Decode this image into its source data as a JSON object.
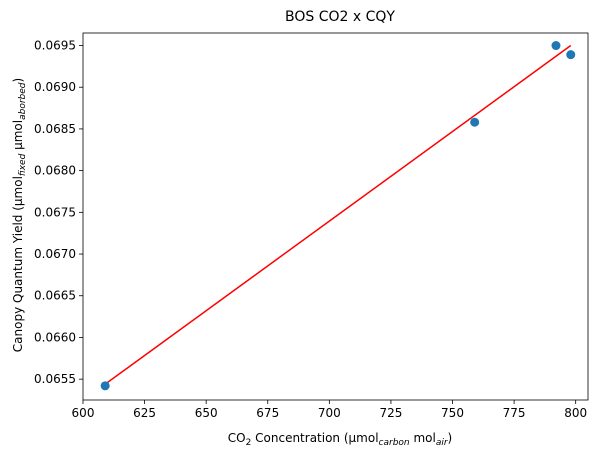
{
  "chart_data": {
    "type": "scatter",
    "title": "BOS CO2 x CQY",
    "xlabel": {
      "main": "CO",
      "sub2": "2",
      "rest": " Concentration (µmol",
      "sub_carbon": "carbon",
      "mol": " mol",
      "sub_air": "air",
      "close": ")"
    },
    "ylabel": {
      "main": "Canopy Quantum Yield (µmol",
      "sub_fixed": "fixed",
      "mid": " µmol",
      "sub_abs": "aborbed",
      "close": ")"
    },
    "xlim": [
      600,
      805
    ],
    "ylim": [
      0.06525,
      0.06965
    ],
    "xticks": [
      "600",
      "625",
      "650",
      "675",
      "700",
      "725",
      "750",
      "775",
      "800"
    ],
    "yticks": [
      "0.0655",
      "0.0660",
      "0.0665",
      "0.0670",
      "0.0675",
      "0.0680",
      "0.0685",
      "0.0690",
      "0.0695"
    ],
    "points": [
      {
        "x": 609,
        "y": 0.06542
      },
      {
        "x": 759,
        "y": 0.06858
      },
      {
        "x": 792,
        "y": 0.0695
      },
      {
        "x": 798,
        "y": 0.06939
      }
    ],
    "fit_line": {
      "x": [
        609,
        798
      ],
      "y": [
        0.06544,
        0.0695
      ]
    },
    "point_color": "#1f77b4",
    "line_color": "#ff0000",
    "grid": false
  }
}
